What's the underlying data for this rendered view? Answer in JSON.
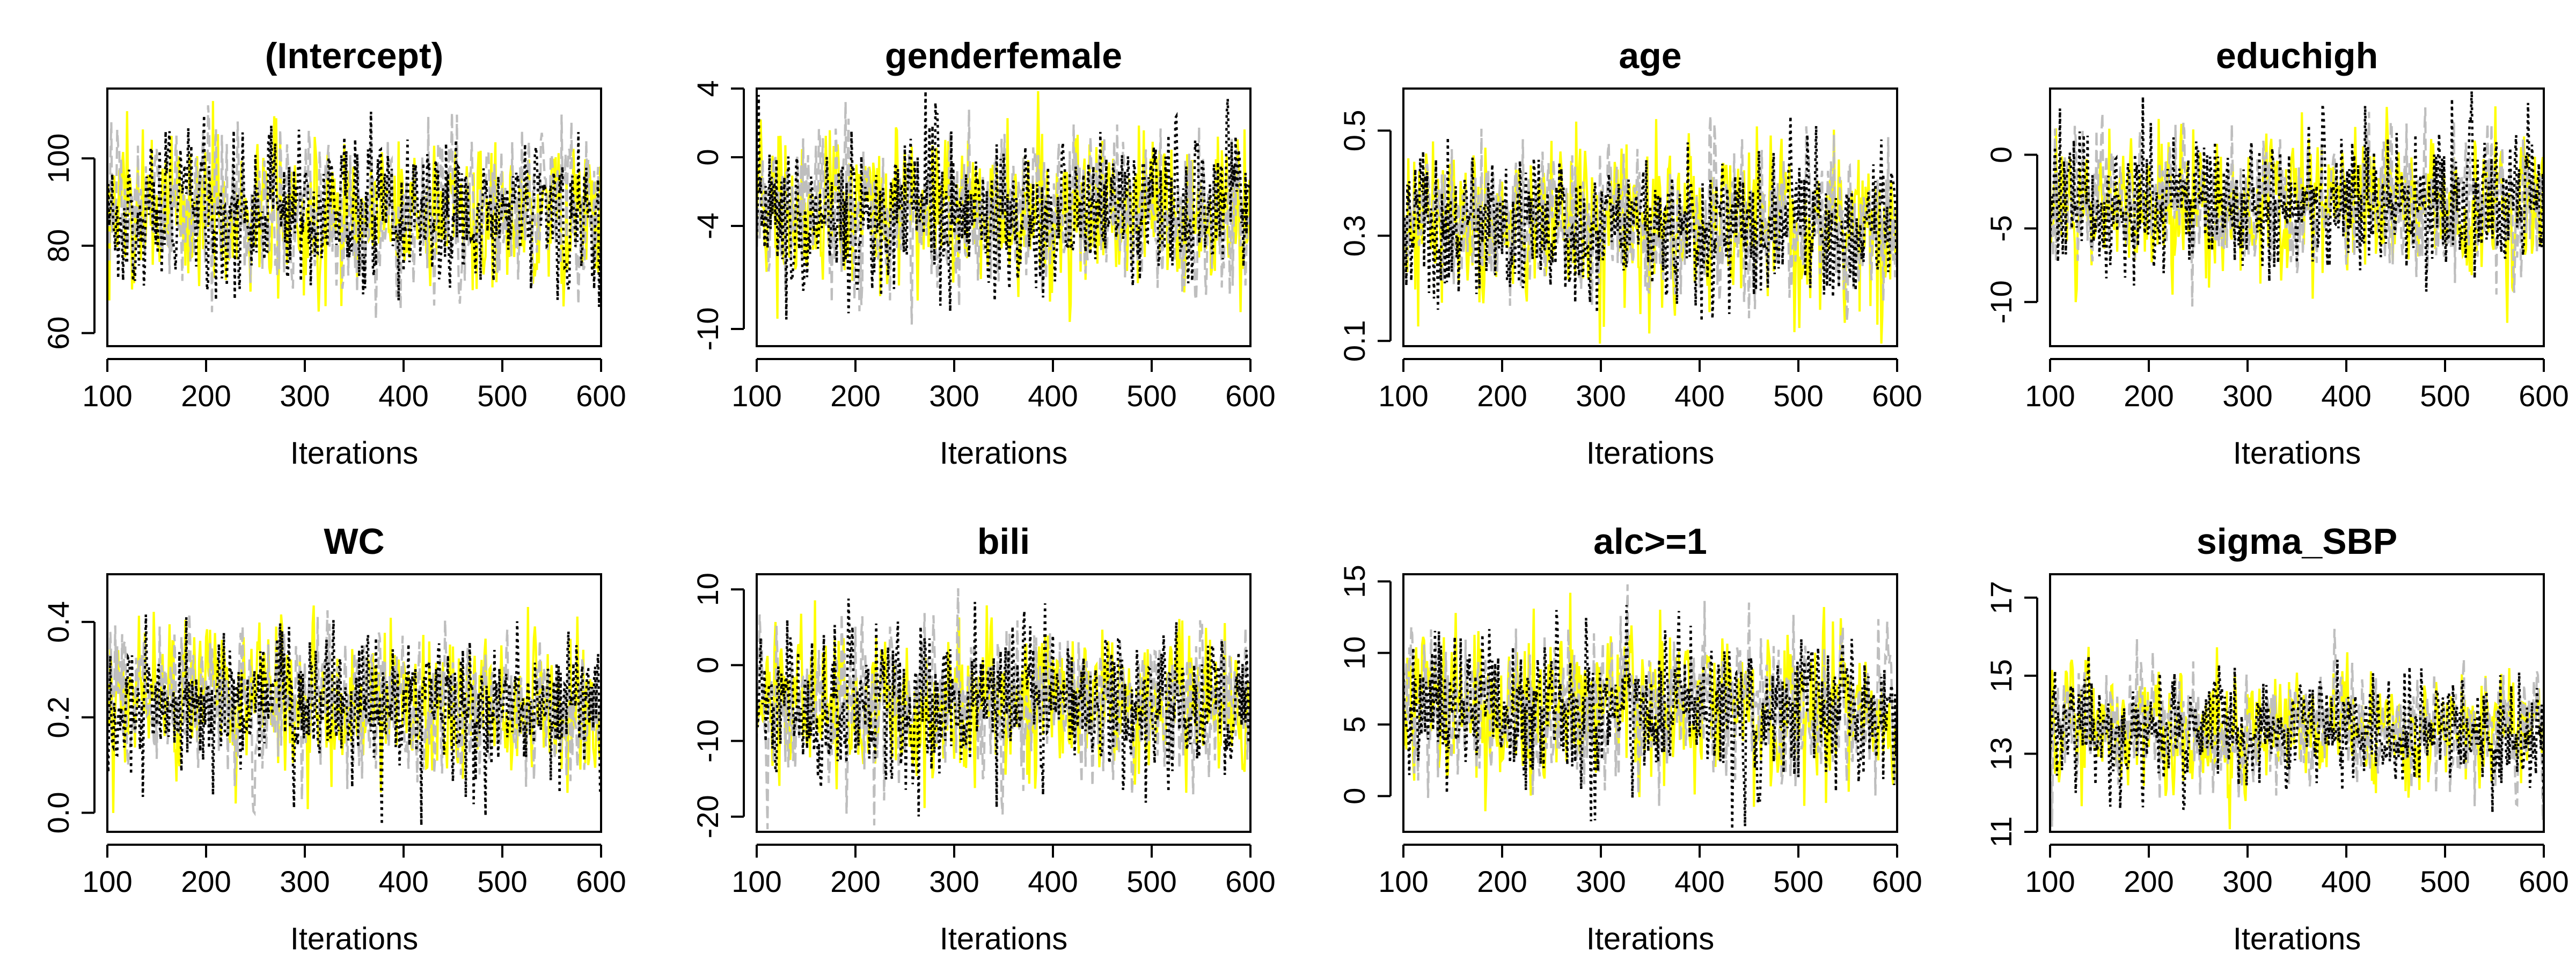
{
  "chart_data": [
    {
      "type": "line",
      "title": "(Intercept)",
      "xlabel": "Iterations",
      "ylabel": "",
      "xlim": [
        100,
        600
      ],
      "ylim": [
        57,
        116
      ],
      "xticks": [
        100,
        200,
        300,
        400,
        500,
        600
      ],
      "xtick_labels": [
        "100",
        "200",
        "300",
        "400",
        "500",
        "600"
      ],
      "yticks": [
        60,
        80,
        100
      ],
      "ytick_labels": [
        "60",
        "80",
        "100"
      ],
      "grid": false,
      "series_center": 88,
      "series_spread": 9,
      "series": [
        {
          "color": "#FFFF00",
          "linestyle": "solid"
        },
        {
          "color": "#BEBEBE",
          "linestyle": "dashed"
        },
        {
          "color": "#000000",
          "linestyle": "dotted"
        }
      ]
    },
    {
      "type": "line",
      "title": "genderfemale",
      "xlabel": "Iterations",
      "ylabel": "",
      "xlim": [
        100,
        600
      ],
      "ylim": [
        -11,
        4
      ],
      "xticks": [
        100,
        200,
        300,
        400,
        500,
        600
      ],
      "xtick_labels": [
        "100",
        "200",
        "300",
        "400",
        "500",
        "600"
      ],
      "yticks": [
        -10,
        -4,
        0,
        4
      ],
      "ytick_labels": [
        "-10",
        "-4",
        "0",
        "4"
      ],
      "grid": false,
      "series_center": -3.2,
      "series_spread": 2.3,
      "series": [
        {
          "color": "#FFFF00",
          "linestyle": "solid"
        },
        {
          "color": "#BEBEBE",
          "linestyle": "dashed"
        },
        {
          "color": "#000000",
          "linestyle": "dotted"
        }
      ]
    },
    {
      "type": "line",
      "title": "age",
      "xlabel": "Iterations",
      "ylabel": "",
      "xlim": [
        100,
        600
      ],
      "ylim": [
        0.09,
        0.58
      ],
      "xticks": [
        100,
        200,
        300,
        400,
        500,
        600
      ],
      "xtick_labels": [
        "100",
        "200",
        "300",
        "400",
        "500",
        "600"
      ],
      "yticks": [
        0.1,
        0.3,
        0.5
      ],
      "ytick_labels": [
        "0.1",
        "0.3",
        "0.5"
      ],
      "grid": false,
      "series_center": 0.32,
      "series_spread": 0.075,
      "series": [
        {
          "color": "#FFFF00",
          "linestyle": "solid"
        },
        {
          "color": "#BEBEBE",
          "linestyle": "dashed"
        },
        {
          "color": "#000000",
          "linestyle": "dotted"
        }
      ]
    },
    {
      "type": "line",
      "title": "educhigh",
      "xlabel": "Iterations",
      "ylabel": "",
      "xlim": [
        100,
        600
      ],
      "ylim": [
        -13,
        4.5
      ],
      "xticks": [
        100,
        200,
        300,
        400,
        500,
        600
      ],
      "xtick_labels": [
        "100",
        "200",
        "300",
        "400",
        "500",
        "600"
      ],
      "yticks": [
        -10,
        -5,
        0
      ],
      "ytick_labels": [
        "-10",
        "-5",
        "0"
      ],
      "grid": false,
      "series_center": -3.3,
      "series_spread": 2.4,
      "series": [
        {
          "color": "#FFFF00",
          "linestyle": "solid"
        },
        {
          "color": "#BEBEBE",
          "linestyle": "dashed"
        },
        {
          "color": "#000000",
          "linestyle": "dotted"
        }
      ]
    },
    {
      "type": "line",
      "title": "WC",
      "xlabel": "Iterations",
      "ylabel": "",
      "xlim": [
        100,
        600
      ],
      "ylim": [
        -0.04,
        0.5
      ],
      "xticks": [
        100,
        200,
        300,
        400,
        500,
        600
      ],
      "xtick_labels": [
        "100",
        "200",
        "300",
        "400",
        "500",
        "600"
      ],
      "yticks": [
        0.0,
        0.2,
        0.4
      ],
      "ytick_labels": [
        "0.0",
        "0.2",
        "0.4"
      ],
      "grid": false,
      "series_center": 0.23,
      "series_spread": 0.075,
      "series": [
        {
          "color": "#FFFF00",
          "linestyle": "solid"
        },
        {
          "color": "#BEBEBE",
          "linestyle": "dashed"
        },
        {
          "color": "#000000",
          "linestyle": "dotted"
        }
      ]
    },
    {
      "type": "line",
      "title": "bili",
      "xlabel": "Iterations",
      "ylabel": "",
      "xlim": [
        100,
        600
      ],
      "ylim": [
        -22,
        12
      ],
      "xticks": [
        100,
        200,
        300,
        400,
        500,
        600
      ],
      "xtick_labels": [
        "100",
        "200",
        "300",
        "400",
        "500",
        "600"
      ],
      "yticks": [
        -20,
        -10,
        0,
        10
      ],
      "ytick_labels": [
        "-20",
        "-10",
        "0",
        "10"
      ],
      "grid": false,
      "series_center": -5,
      "series_spread": 5,
      "series": [
        {
          "color": "#FFFF00",
          "linestyle": "solid"
        },
        {
          "color": "#BEBEBE",
          "linestyle": "dashed"
        },
        {
          "color": "#000000",
          "linestyle": "dotted"
        }
      ]
    },
    {
      "type": "line",
      "title": "alc>=1",
      "xlabel": "Iterations",
      "ylabel": "",
      "xlim": [
        100,
        600
      ],
      "ylim": [
        -2.5,
        15.5
      ],
      "xticks": [
        100,
        200,
        300,
        400,
        500,
        600
      ],
      "xtick_labels": [
        "100",
        "200",
        "300",
        "400",
        "500",
        "600"
      ],
      "yticks": [
        0,
        5,
        10,
        15
      ],
      "ytick_labels": [
        "0",
        "5",
        "10",
        "15"
      ],
      "grid": false,
      "series_center": 6.3,
      "series_spread": 2.6,
      "series": [
        {
          "color": "#FFFF00",
          "linestyle": "solid"
        },
        {
          "color": "#BEBEBE",
          "linestyle": "dashed"
        },
        {
          "color": "#000000",
          "linestyle": "dotted"
        }
      ]
    },
    {
      "type": "line",
      "title": "sigma_SBP",
      "xlabel": "Iterations",
      "ylabel": "",
      "xlim": [
        100,
        600
      ],
      "ylim": [
        11.0,
        17.6
      ],
      "xticks": [
        100,
        200,
        300,
        400,
        500,
        600
      ],
      "xtick_labels": [
        "100",
        "200",
        "300",
        "400",
        "500",
        "600"
      ],
      "yticks": [
        11,
        13,
        15,
        17
      ],
      "ytick_labels": [
        "11",
        "13",
        "15",
        "17"
      ],
      "grid": false,
      "series_center": 13.6,
      "series_spread": 0.75,
      "series": [
        {
          "color": "#FFFF00",
          "linestyle": "solid"
        },
        {
          "color": "#BEBEBE",
          "linestyle": "dashed"
        },
        {
          "color": "#000000",
          "linestyle": "dotted"
        }
      ]
    }
  ]
}
